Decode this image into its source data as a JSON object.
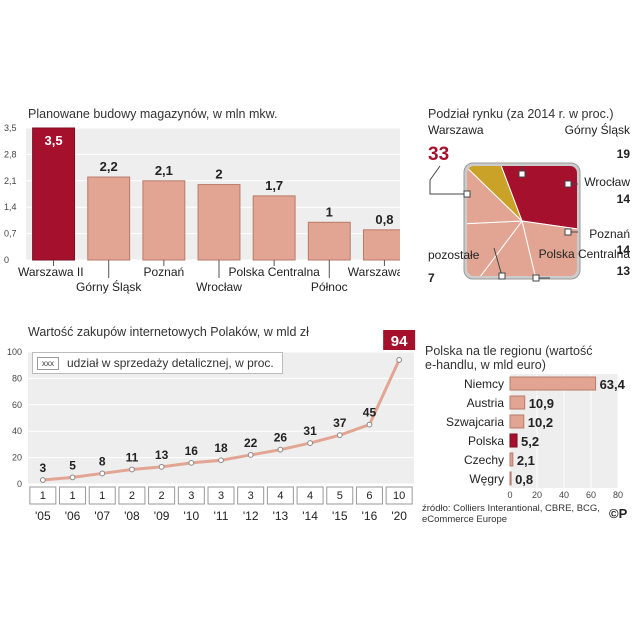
{
  "colors": {
    "bar": "#e3a593",
    "bar_edge": "#b87a6a",
    "highlight": "#a5112c",
    "gold": "#c9a227",
    "panel_bg": "#eeeeee",
    "grid": "#ffffff",
    "label_box_bg": "#ffffff",
    "label_box_border": "#999999"
  },
  "chart_data": [
    {
      "id": "warehouses",
      "type": "bar",
      "title": "Planowane budowy magazynów, w mln mkw.",
      "categories": [
        "Warszawa II",
        "Górny Śląsk",
        "Poznań",
        "Wrocław",
        "Polska Centralna",
        "Północ",
        "Warszawa I"
      ],
      "values": [
        3.5,
        2.2,
        2.1,
        2.0,
        1.7,
        1.0,
        0.8
      ],
      "value_labels": [
        "3,5",
        "2,2",
        "2,1",
        "2",
        "1,7",
        "1",
        "0,8"
      ],
      "highlight_index": 0,
      "y_ticks": [
        "0",
        "0,7",
        "1,4",
        "2,1",
        "2,8",
        "3,5"
      ],
      "ylim": [
        0,
        3.5
      ],
      "grid": true
    },
    {
      "id": "market_share",
      "type": "pie",
      "title": "Podział rynku (za 2014 r. w proc.)",
      "slices": [
        {
          "label": "Warszawa",
          "value": 33,
          "value_label": "33"
        },
        {
          "label": "Górny Śląsk",
          "value": 19,
          "value_label": "19"
        },
        {
          "label": "Wrocław",
          "value": 14,
          "value_label": "14"
        },
        {
          "label": "Poznań",
          "value": 14,
          "value_label": "14"
        },
        {
          "label": "Polska Centralna",
          "value": 13,
          "value_label": "13"
        },
        {
          "label": "pozostałe",
          "value": 7,
          "value_label": "7"
        }
      ]
    },
    {
      "id": "online_purchases",
      "type": "line",
      "title": "Wartość zakupów internetowych Polaków, w mld zł",
      "legend_swatch": "xxx",
      "legend_label": "udział w sprzedaży detalicznej, w proc.",
      "x": [
        "'05",
        "'06",
        "'07",
        "'08",
        "'09",
        "'10",
        "'11",
        "'12",
        "'13",
        "'14",
        "'15",
        "'16",
        "'20"
      ],
      "values": [
        3,
        5,
        8,
        11,
        13,
        16,
        18,
        22,
        26,
        31,
        37,
        45,
        94
      ],
      "value_labels": [
        "3",
        "5",
        "8",
        "11",
        "13",
        "16",
        "18",
        "22",
        "26",
        "31",
        "37",
        "45",
        "94"
      ],
      "share": [
        "1",
        "1",
        "1",
        "2",
        "2",
        "3",
        "3",
        "3",
        "4",
        "4",
        "5",
        "6",
        "10"
      ],
      "y_ticks": [
        "0",
        "20",
        "40",
        "60",
        "80",
        "100"
      ],
      "ylim": [
        0,
        100
      ],
      "highlight_last": true,
      "grid": true
    },
    {
      "id": "ecommerce_region",
      "type": "bar",
      "orientation": "horizontal",
      "title_lines": [
        "Polska na tle regionu (wartość",
        "e-handlu, w mld euro)"
      ],
      "categories": [
        "Niemcy",
        "Austria",
        "Szwajcaria",
        "Polska",
        "Czechy",
        "Węgry"
      ],
      "values": [
        63.4,
        10.9,
        10.2,
        5.2,
        2.1,
        0.8
      ],
      "value_labels": [
        "63,4",
        "10,9",
        "10,2",
        "5,2",
        "2,1",
        "0,8"
      ],
      "highlight_index": 3,
      "x_ticks": [
        "0",
        "20",
        "40",
        "60",
        "80"
      ],
      "xlim": [
        0,
        80
      ],
      "grid": true
    }
  ],
  "source_lines": [
    "źródło: Colliers Interantional, CBRE, BCG,",
    "eCommerce Europe"
  ],
  "copyright": "©P"
}
